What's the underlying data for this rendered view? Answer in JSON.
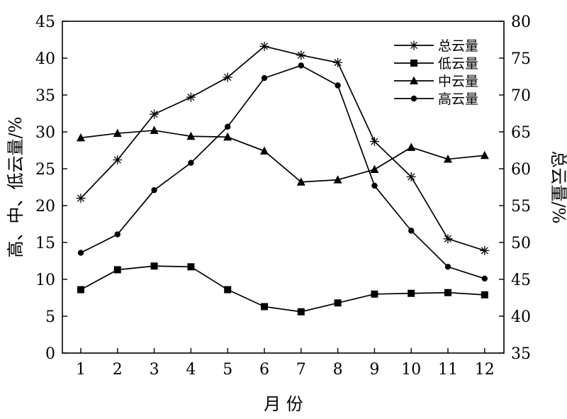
{
  "chart_data": {
    "type": "line",
    "title": "",
    "xlabel": "月 份",
    "ylabel_left": "高、中、低云量/%",
    "ylabel_right": "总云量/%",
    "x": [
      1,
      2,
      3,
      4,
      5,
      6,
      7,
      8,
      9,
      10,
      11,
      12
    ],
    "x_ticks": [
      "1",
      "2",
      "3",
      "4",
      "5",
      "6",
      "7",
      "8",
      "9",
      "10",
      "11",
      "12"
    ],
    "ylim_left": [
      0,
      45
    ],
    "yticks_left": [
      "0",
      "5",
      "10",
      "15",
      "20",
      "25",
      "30",
      "35",
      "40",
      "45"
    ],
    "ylim_right": [
      35,
      80
    ],
    "yticks_right": [
      "35",
      "40",
      "45",
      "50",
      "55",
      "60",
      "65",
      "70",
      "75",
      "80"
    ],
    "legend_position": "top-right",
    "series": [
      {
        "name": "总云量",
        "axis": "right",
        "marker": "star",
        "values": [
          56.0,
          61.2,
          67.4,
          69.7,
          72.4,
          76.6,
          75.4,
          74.4,
          63.7,
          58.9,
          50.5,
          48.9
        ]
      },
      {
        "name": "低云量",
        "axis": "left",
        "marker": "square",
        "values": [
          8.6,
          11.3,
          11.8,
          11.7,
          8.6,
          6.3,
          5.6,
          6.8,
          8.0,
          8.1,
          8.2,
          7.9
        ]
      },
      {
        "name": "中云量",
        "axis": "left",
        "marker": "triangle",
        "values": [
          29.2,
          29.8,
          30.2,
          29.4,
          29.3,
          27.4,
          23.2,
          23.5,
          24.9,
          27.9,
          26.3,
          26.8
        ]
      },
      {
        "name": "高云量",
        "axis": "left",
        "marker": "circle",
        "values": [
          13.6,
          16.1,
          22.1,
          25.8,
          30.7,
          37.3,
          39.0,
          36.3,
          22.7,
          16.6,
          11.7,
          10.1
        ]
      }
    ]
  }
}
